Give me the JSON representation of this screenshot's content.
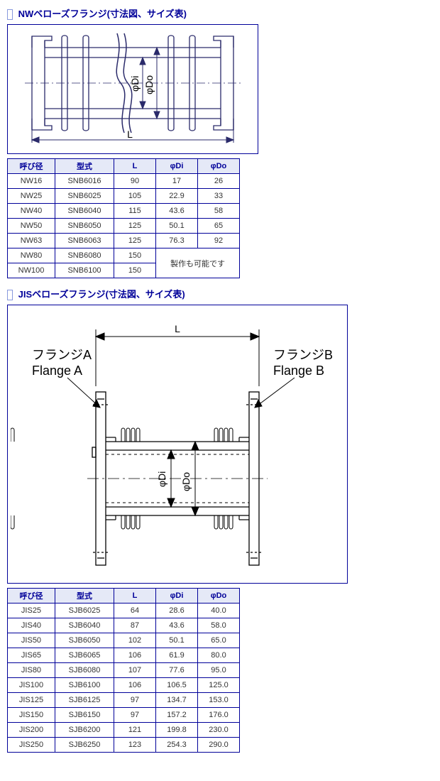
{
  "section1": {
    "title": "NWベローズフランジ(寸法図、サイズ表)",
    "diagram": {
      "L": "L",
      "phiDi": "φDi",
      "phiDo": "φDo"
    },
    "table": {
      "headers": [
        "呼び径",
        "型式",
        "L",
        "φDi",
        "φDo"
      ],
      "rows": [
        [
          "NW16",
          "SNB6016",
          "90",
          "17",
          "26"
        ],
        [
          "NW25",
          "SNB6025",
          "105",
          "22.9",
          "33"
        ],
        [
          "NW40",
          "SNB6040",
          "115",
          "43.6",
          "58"
        ],
        [
          "NW50",
          "SNB6050",
          "125",
          "50.1",
          "65"
        ],
        [
          "NW63",
          "SNB6063",
          "125",
          "76.3",
          "92"
        ]
      ],
      "extra_rows": [
        [
          "NW80",
          "SNB6080",
          "150"
        ],
        [
          "NW100",
          "SNB6100",
          "150"
        ]
      ],
      "extra_note": "製作も可能です"
    }
  },
  "section2": {
    "title": "JISベローズフランジ(寸法図、サイズ表)",
    "diagram": {
      "L": "L",
      "phiDi": "φDi",
      "phiDo": "φDo",
      "flangeA_jp": "フランジA",
      "flangeA_en": "Flange A",
      "flangeB_jp": "フランジB",
      "flangeB_en": "Flange B"
    },
    "table": {
      "headers": [
        "呼び径",
        "型式",
        "L",
        "φDi",
        "φDo"
      ],
      "rows": [
        [
          "JIS25",
          "SJB6025",
          "64",
          "28.6",
          "40.0"
        ],
        [
          "JIS40",
          "SJB6040",
          "87",
          "43.6",
          "58.0"
        ],
        [
          "JIS50",
          "SJB6050",
          "102",
          "50.1",
          "65.0"
        ],
        [
          "JIS65",
          "SJB6065",
          "106",
          "61.9",
          "80.0"
        ],
        [
          "JIS80",
          "SJB6080",
          "107",
          "77.6",
          "95.0"
        ],
        [
          "JIS100",
          "SJB6100",
          "106",
          "106.5",
          "125.0"
        ],
        [
          "JIS125",
          "SJB6125",
          "97",
          "134.7",
          "153.0"
        ],
        [
          "JIS150",
          "SJB6150",
          "97",
          "157.2",
          "176.0"
        ],
        [
          "JIS200",
          "SJB6200",
          "121",
          "199.8",
          "230.0"
        ],
        [
          "JIS250",
          "SJB6250",
          "123",
          "254.3",
          "290.0"
        ]
      ]
    }
  }
}
